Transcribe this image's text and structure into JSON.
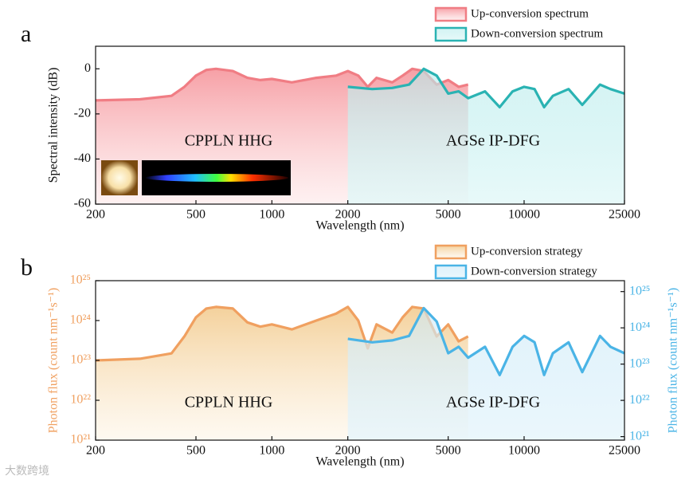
{
  "chart_data": [
    {
      "type": "line",
      "panel": "a",
      "xscale": "log",
      "ylabel": "Spectral intensity (dB)",
      "xlabel": "Wavelength (nm)",
      "xlim": [
        200,
        25000
      ],
      "xticks": [
        200,
        500,
        1000,
        2000,
        5000,
        10000,
        25000
      ],
      "ylim": [
        -60,
        10
      ],
      "yticks": [
        -60,
        -40,
        -20,
        0
      ],
      "legend": "upper right",
      "annotations": [
        "CPPLN HHG",
        "AGSe IP-DFG"
      ],
      "series": [
        {
          "name": "Up-conversion spectrum",
          "color": "#f07d84",
          "x": [
            200,
            300,
            400,
            450,
            500,
            550,
            600,
            700,
            800,
            900,
            1000,
            1200,
            1500,
            1800,
            2000,
            2200,
            2400,
            2600,
            3000,
            3300,
            3600,
            4000,
            4500,
            5000,
            5500,
            6000
          ],
          "values": [
            -14,
            -13.5,
            -12,
            -8,
            -3,
            -0.5,
            0,
            -1,
            -4,
            -5,
            -4.5,
            -6,
            -4,
            -3,
            -1,
            -3,
            -8,
            -4,
            -6,
            -3,
            0,
            -1,
            -7,
            -5,
            -8,
            -7
          ]
        },
        {
          "name": "Down-conversion spectrum",
          "color": "#2ab3b3",
          "x": [
            2000,
            2500,
            3000,
            3500,
            4000,
            4500,
            5000,
            5500,
            6000,
            7000,
            8000,
            9000,
            10000,
            11000,
            12000,
            13000,
            15000,
            17000,
            20000,
            22000,
            25000
          ],
          "values": [
            -8,
            -9,
            -8.5,
            -7,
            0,
            -3,
            -11,
            -10,
            -13,
            -10,
            -17,
            -10,
            -8,
            -9,
            -17,
            -12,
            -9,
            -16,
            -7,
            -9,
            -11
          ]
        }
      ]
    },
    {
      "type": "line",
      "panel": "b",
      "xscale": "log",
      "yscale": "log",
      "ylabel": "Photon flux (count nm⁻¹s⁻¹)",
      "y2label": "Photon flux (count nm⁻¹s⁻¹)",
      "xlabel": "Wavelength (nm)",
      "xlim": [
        200,
        25000
      ],
      "xticks": [
        200,
        500,
        1000,
        2000,
        5000,
        10000,
        25000
      ],
      "ylim": [
        1e+21,
        1e+25
      ],
      "yticks": [
        {
          "value": 1e+21,
          "label": "10²¹"
        },
        {
          "value": 1e+22,
          "label": "10²²"
        },
        {
          "value": 1e+23,
          "label": "10²³"
        },
        {
          "value": 1e+24,
          "label": "10²⁴"
        },
        {
          "value": 1e+25,
          "label": "10²⁵"
        }
      ],
      "y2lim": [
        8e+20,
        2e+25
      ],
      "y2ticks": [
        {
          "value": 1e+21,
          "label": "10²¹"
        },
        {
          "value": 1e+22,
          "label": "10²²"
        },
        {
          "value": 1e+23,
          "label": "10²³"
        },
        {
          "value": 1e+24,
          "label": "10²⁴"
        },
        {
          "value": 1e+25,
          "label": "10²⁵"
        }
      ],
      "legend": "upper right",
      "annotations": [
        "CPPLN HHG",
        "AGSe IP-DFG"
      ],
      "series": [
        {
          "name": "Up-conversion strategy",
          "color": "#f0a060",
          "x": [
            200,
            300,
            400,
            450,
            500,
            550,
            600,
            700,
            800,
            900,
            1000,
            1200,
            1500,
            1800,
            2000,
            2200,
            2400,
            2600,
            3000,
            3300,
            3600,
            4000,
            4500,
            5000,
            5500,
            6000
          ],
          "values": [
            1e+23,
            1.1e+23,
            1.5e+23,
            4e+23,
            1.2e+24,
            2e+24,
            2.2e+24,
            2e+24,
            9e+23,
            7e+23,
            8e+23,
            6e+23,
            1e+24,
            1.5e+24,
            2.2e+24,
            1e+24,
            2e+23,
            8e+23,
            5e+23,
            1.2e+24,
            2.2e+24,
            2e+24,
            4e+23,
            8e+23,
            3e+23,
            4e+23
          ]
        },
        {
          "name": "Down-conversion strategy",
          "color": "#4ab4e6",
          "axis": "y2",
          "x": [
            2000,
            2500,
            3000,
            3500,
            4000,
            4500,
            5000,
            5500,
            6000,
            7000,
            8000,
            9000,
            10000,
            11000,
            12000,
            13000,
            15000,
            17000,
            20000,
            22000,
            25000
          ],
          "values": [
            5e+23,
            4e+23,
            4.5e+23,
            6e+23,
            3.5e+24,
            1.5e+24,
            2e+23,
            3e+23,
            1.5e+23,
            3e+23,
            5e+22,
            3e+23,
            6e+23,
            4e+23,
            5e+22,
            2e+23,
            4e+23,
            6e+22,
            6e+23,
            3e+23,
            2e+23
          ]
        }
      ]
    }
  ],
  "watermark": "大数跨境"
}
